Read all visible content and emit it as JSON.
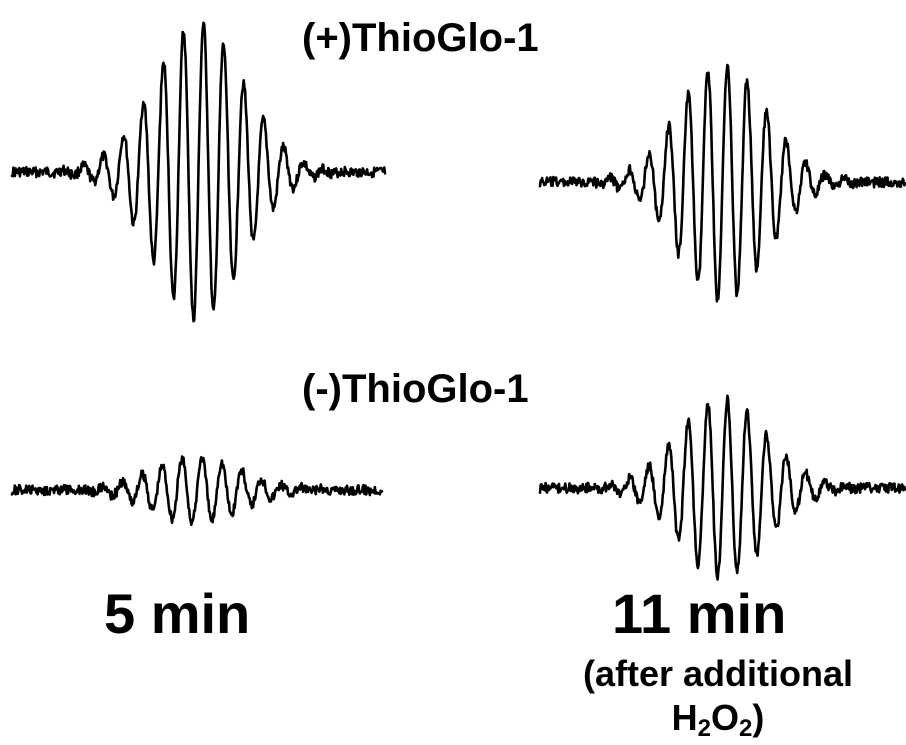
{
  "rows": {
    "top_label": "(+)ThioGlo-1",
    "bottom_label": "(-)ThioGlo-1"
  },
  "columns": {
    "left_label": "5 min",
    "right_label": "11 min",
    "right_note_line1": "(after additional",
    "right_note_formula_h": "H",
    "right_note_formula_h_sub": "2",
    "right_note_formula_o": "O",
    "right_note_formula_o_sub": "2",
    "right_note_formula_close": ")"
  },
  "chart_data": {
    "type": "line",
    "description_free": true,
    "x_axis": "none",
    "y_axis": "none",
    "grid": false,
    "series": [
      {
        "row": "(+)ThioGlo-1",
        "time": "5 min",
        "lines": 12,
        "relative_amplitude": 1.0
      },
      {
        "row": "(+)ThioGlo-1",
        "time": "11 min",
        "lines": 12,
        "relative_amplitude": 0.8
      },
      {
        "row": "(-)ThioGlo-1",
        "time": "5 min",
        "lines": 12,
        "relative_amplitude": 0.22
      },
      {
        "row": "(-)ThioGlo-1",
        "time": "11 min",
        "lines": 12,
        "relative_amplitude": 0.6
      }
    ],
    "colors": {
      "trace": "#000000",
      "background": "#ffffff"
    }
  }
}
